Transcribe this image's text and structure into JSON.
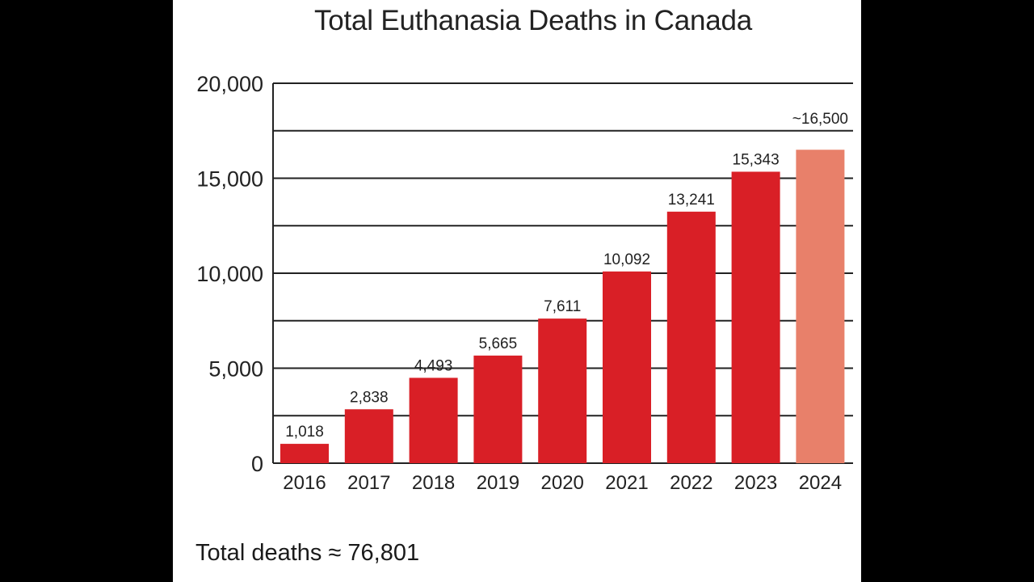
{
  "chart_data": {
    "type": "bar",
    "title": "Total Euthanasia Deaths in Canada",
    "categories": [
      "2016",
      "2017",
      "2018",
      "2019",
      "2020",
      "2021",
      "2022",
      "2023",
      "2024"
    ],
    "values": [
      1018,
      2838,
      4493,
      5665,
      7611,
      10092,
      13241,
      15343,
      16500
    ],
    "data_labels": [
      "1,018",
      "2,838",
      "4,493",
      "5,665",
      "7,611",
      "10,092",
      "13,241",
      "15,343",
      "~16,500"
    ],
    "estimated": [
      false,
      false,
      false,
      false,
      false,
      false,
      false,
      false,
      true
    ],
    "ylim": [
      0,
      20000
    ],
    "yticks": [
      0,
      5000,
      10000,
      15000,
      20000
    ],
    "ytick_labels": [
      "0",
      "5,000",
      "10,000",
      "15,000",
      "20,000"
    ],
    "grid_step": 2500,
    "grid": true,
    "colors": {
      "bar": "#d91f26",
      "estimate_bar": "#e8806a",
      "grid": "#222222"
    },
    "xlabel": "",
    "ylabel": "",
    "footnote": "Total deaths ≈ 76,801"
  }
}
